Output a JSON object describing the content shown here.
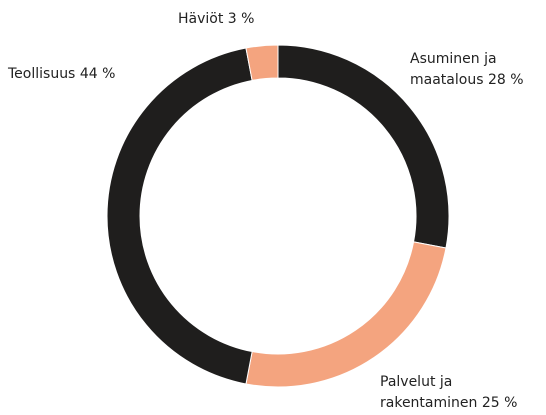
{
  "chart_data": {
    "type": "donut",
    "categories": [
      "Asuminen ja maatalous",
      "Palvelut ja rakentaminen",
      "Teollisuus",
      "Häviöt"
    ],
    "values": [
      28,
      25,
      44,
      3
    ],
    "value_labels": [
      "28 %",
      "25 %",
      "44 %",
      "3 %"
    ],
    "colors": [
      "#1f1e1d",
      "#f4a47f",
      "#1f1e1d",
      "#f4a47f"
    ]
  }
}
